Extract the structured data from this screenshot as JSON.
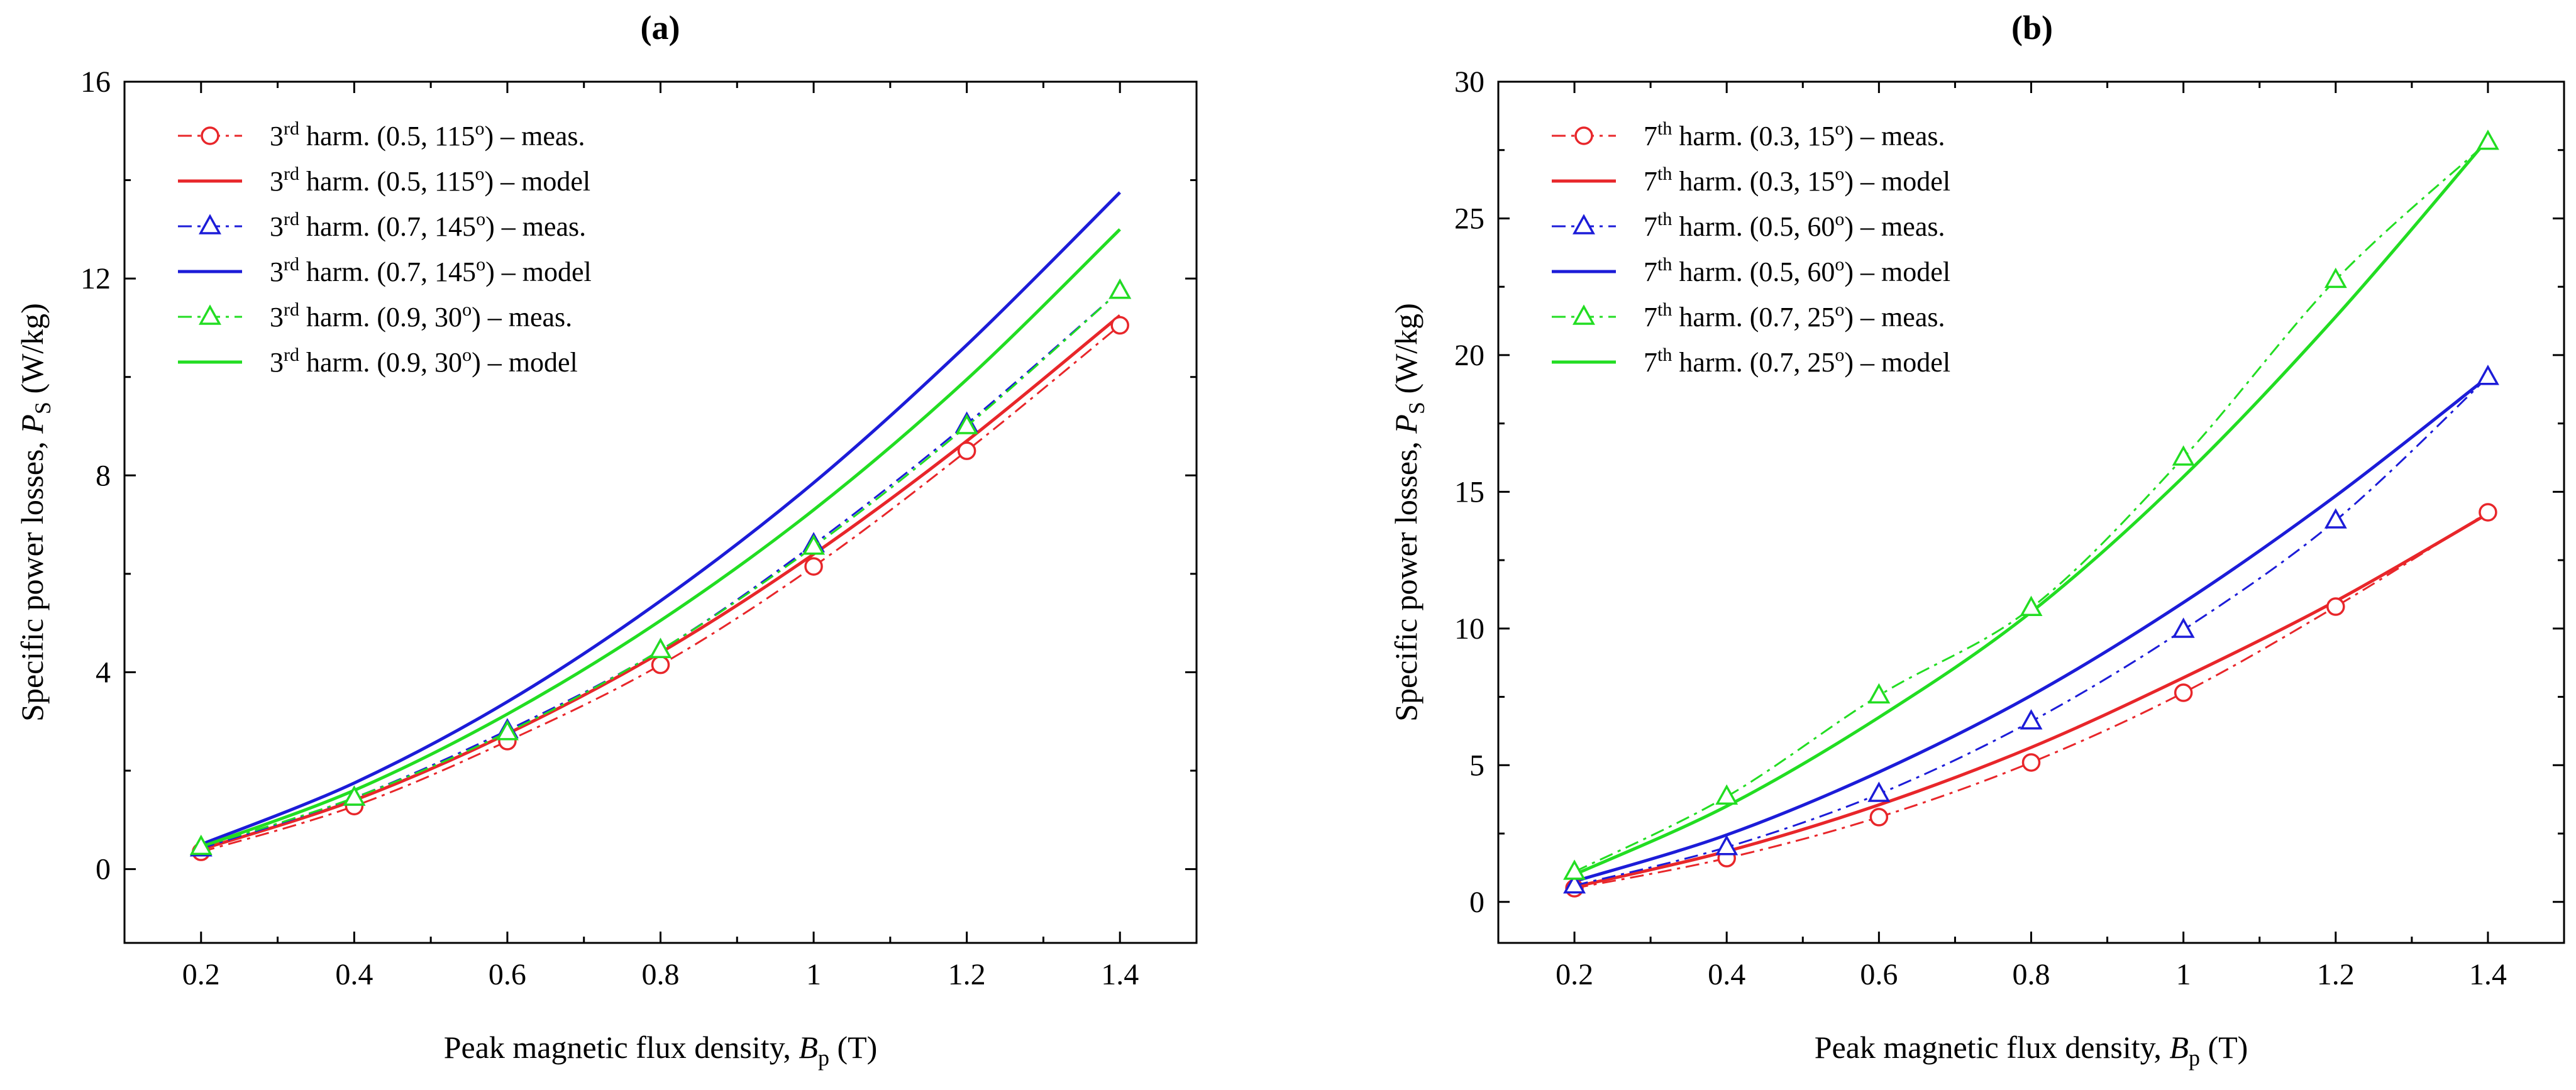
{
  "chart_data": [
    {
      "type": "line",
      "panel": "a",
      "title": "(a)",
      "xlabel": "Peak magnetic flux density, B_p (T)",
      "xlabel_main": "Peak magnetic flux density, ",
      "xlabel_var": "B",
      "xlabel_sub": "p",
      "xlabel_unit": " (T)",
      "ylabel": "Specific power losses, P_S (W/kg)",
      "ylabel_main": "Specific power losses, ",
      "ylabel_var": "P",
      "ylabel_sub": "S",
      "ylabel_unit": " (W/kg)",
      "xlim": [
        0.1,
        1.5
      ],
      "ylim": [
        -1.5,
        16
      ],
      "xticks": [
        0.2,
        0.4,
        0.6,
        0.8,
        1.0,
        1.2,
        1.4
      ],
      "xtick_labels": [
        "0.2",
        "0.4",
        "0.6",
        "0.8",
        "1",
        "1.2",
        "1.4"
      ],
      "yticks": [
        0,
        4,
        8,
        12,
        16
      ],
      "ytick_labels": [
        "0",
        "4",
        "8",
        "12",
        "16"
      ],
      "legend_position": "top-left",
      "series": [
        {
          "name": "3rd harm. (0.5, 115o) – meas.",
          "label_pre": "3",
          "label_sup": "rd",
          "label_mid": " harm. (0.5, 115",
          "label_deg": "o",
          "label_post": ") – meas.",
          "color": "#e8262a",
          "style": "dashdot",
          "marker": "circle",
          "x": [
            0.2,
            0.4,
            0.6,
            0.8,
            1.0,
            1.2,
            1.4
          ],
          "y": [
            0.35,
            1.28,
            2.6,
            4.15,
            6.15,
            8.5,
            11.05
          ]
        },
        {
          "name": "3rd harm. (0.5, 115o) – model",
          "label_pre": "3",
          "label_sup": "rd",
          "label_mid": " harm. (0.5, 115",
          "label_deg": "o",
          "label_post": ") – model",
          "color": "#e8262a",
          "style": "solid",
          "marker": "none",
          "x": [
            0.2,
            0.4,
            0.6,
            0.8,
            1.0,
            1.2,
            1.4
          ],
          "y": [
            0.4,
            1.4,
            2.75,
            4.4,
            6.4,
            8.7,
            11.25
          ]
        },
        {
          "name": "3rd harm. (0.7, 145o) – meas.",
          "label_pre": "3",
          "label_sup": "rd",
          "label_mid": " harm. (0.7, 145",
          "label_deg": "o",
          "label_post": ") – meas.",
          "color": "#1c1cd8",
          "style": "dashdot",
          "marker": "triangle",
          "x": [
            0.2,
            0.4,
            0.6,
            0.8,
            1.0,
            1.2,
            1.4
          ],
          "y": [
            0.42,
            1.45,
            2.82,
            4.45,
            6.6,
            9.05,
            11.75
          ]
        },
        {
          "name": "3rd harm. (0.7, 145o) – model",
          "label_pre": "3",
          "label_sup": "rd",
          "label_mid": " harm. (0.7, 145",
          "label_deg": "o",
          "label_post": ") – model",
          "color": "#1c1cd8",
          "style": "solid",
          "marker": "none",
          "x": [
            0.2,
            0.4,
            0.6,
            0.8,
            1.0,
            1.2,
            1.4
          ],
          "y": [
            0.5,
            1.75,
            3.4,
            5.45,
            7.85,
            10.65,
            13.75
          ]
        },
        {
          "name": "3rd harm. (0.9, 30o) – meas.",
          "label_pre": "3",
          "label_sup": "rd",
          "label_mid": " harm. (0.9, 30",
          "label_deg": "o",
          "label_post": ") – meas.",
          "color": "#22dd22",
          "style": "dashdot",
          "marker": "triangle",
          "x": [
            0.2,
            0.4,
            0.6,
            0.8,
            1.0,
            1.2,
            1.4
          ],
          "y": [
            0.45,
            1.45,
            2.78,
            4.45,
            6.55,
            9.0,
            11.75
          ]
        },
        {
          "name": "3rd harm. (0.9, 30o) – model",
          "label_pre": "3",
          "label_sup": "rd",
          "label_mid": " harm. (0.9, 30",
          "label_deg": "o",
          "label_post": ") – model",
          "color": "#22dd22",
          "style": "solid",
          "marker": "none",
          "x": [
            0.2,
            0.4,
            0.6,
            0.8,
            1.0,
            1.2,
            1.4
          ],
          "y": [
            0.45,
            1.6,
            3.15,
            5.05,
            7.3,
            9.95,
            13.0
          ]
        }
      ]
    },
    {
      "type": "line",
      "panel": "b",
      "title": "(b)",
      "xlabel": "Peak magnetic flux density, B_p (T)",
      "xlabel_main": "Peak magnetic flux density, ",
      "xlabel_var": "B",
      "xlabel_sub": "p",
      "xlabel_unit": " (T)",
      "ylabel": "Specific power losses, P_S (W/kg)",
      "ylabel_main": "Specific power losses, ",
      "ylabel_var": "P",
      "ylabel_sub": "S",
      "ylabel_unit": " (W/kg)",
      "xlim": [
        0.1,
        1.5
      ],
      "ylim": [
        -1.5,
        30
      ],
      "xticks": [
        0.2,
        0.4,
        0.6,
        0.8,
        1.0,
        1.2,
        1.4
      ],
      "xtick_labels": [
        "0.2",
        "0.4",
        "0.6",
        "0.8",
        "1",
        "1.2",
        "1.4"
      ],
      "yticks": [
        0,
        5,
        10,
        15,
        20,
        25,
        30
      ],
      "ytick_labels": [
        "0",
        "5",
        "10",
        "15",
        "20",
        "25",
        "30"
      ],
      "legend_position": "top-left",
      "series": [
        {
          "name": "7th harm. (0.3, 15o) – meas.",
          "label_pre": "7",
          "label_sup": "th",
          "label_mid": " harm. (0.3, 15",
          "label_deg": "o",
          "label_post": ") – meas.",
          "color": "#e8262a",
          "style": "dashdot",
          "marker": "circle",
          "x": [
            0.2,
            0.4,
            0.6,
            0.8,
            1.0,
            1.2,
            1.4
          ],
          "y": [
            0.5,
            1.6,
            3.1,
            5.1,
            7.65,
            10.8,
            14.25
          ]
        },
        {
          "name": "7th harm. (0.3, 15o) – model",
          "label_pre": "7",
          "label_sup": "th",
          "label_mid": " harm. (0.3, 15",
          "label_deg": "o",
          "label_post": ") – model",
          "color": "#e8262a",
          "style": "solid",
          "marker": "none",
          "x": [
            0.2,
            0.4,
            0.6,
            0.8,
            1.0,
            1.2,
            1.4
          ],
          "y": [
            0.55,
            1.85,
            3.55,
            5.65,
            8.2,
            11.0,
            14.2
          ]
        },
        {
          "name": "7th harm. (0.5, 60o) – meas.",
          "label_pre": "7",
          "label_sup": "th",
          "label_mid": " harm. (0.5, 60",
          "label_deg": "o",
          "label_post": ") – meas.",
          "color": "#1c1cd8",
          "style": "dashdot",
          "marker": "triangle",
          "x": [
            0.2,
            0.4,
            0.6,
            0.8,
            1.0,
            1.2,
            1.4
          ],
          "y": [
            0.6,
            2.0,
            3.95,
            6.6,
            9.95,
            13.95,
            19.2
          ]
        },
        {
          "name": "7th harm. (0.5, 60o) – model",
          "label_pre": "7",
          "label_sup": "th",
          "label_mid": " harm. (0.5, 60",
          "label_deg": "o",
          "label_post": ") – model",
          "color": "#1c1cd8",
          "style": "solid",
          "marker": "none",
          "x": [
            0.2,
            0.4,
            0.6,
            0.8,
            1.0,
            1.2,
            1.4
          ],
          "y": [
            0.75,
            2.45,
            4.75,
            7.55,
            10.95,
            14.85,
            19.2
          ]
        },
        {
          "name": "7th harm. (0.7, 25o) – meas.",
          "label_pre": "7",
          "label_sup": "th",
          "label_mid": " harm. (0.7, 25",
          "label_deg": "o",
          "label_post": ") – meas.",
          "color": "#22dd22",
          "style": "dashdot",
          "marker": "triangle",
          "x": [
            0.2,
            0.4,
            0.6,
            0.8,
            1.0,
            1.2,
            1.4
          ],
          "y": [
            1.1,
            3.85,
            7.55,
            10.75,
            16.25,
            22.75,
            27.8
          ]
        },
        {
          "name": "7th harm. (0.7, 25o) – model",
          "label_pre": "7",
          "label_sup": "th",
          "label_mid": " harm. (0.7, 25",
          "label_deg": "o",
          "label_post": ") – model",
          "color": "#22dd22",
          "style": "solid",
          "marker": "none",
          "x": [
            0.2,
            0.4,
            0.6,
            0.8,
            1.0,
            1.2,
            1.4
          ],
          "y": [
            1.0,
            3.5,
            6.75,
            10.6,
            15.55,
            21.4,
            27.9
          ]
        }
      ]
    }
  ]
}
